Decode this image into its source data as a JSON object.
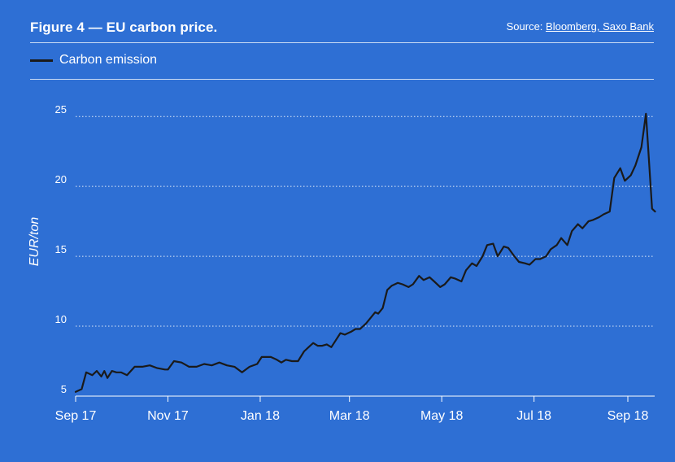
{
  "header": {
    "title": "Figure 4 — EU carbon price.",
    "source_prefix": "Source: ",
    "source_link": "Bloomberg, Saxo Bank"
  },
  "colors": {
    "background": "#2E6FD4",
    "line": "#1a1a1a",
    "text": "#ffffff",
    "grid": "#ffffff"
  },
  "chart_data": {
    "type": "line",
    "title": "Figure 4 — EU carbon price.",
    "ylabel": "EUR/ton",
    "xlabel": "",
    "ylim": [
      5,
      26
    ],
    "yticks": [
      5,
      10,
      15,
      20,
      25
    ],
    "xticks": [
      "Sep 17",
      "Nov 17",
      "Jan 18",
      "Mar 18",
      "May 18",
      "Jul 18",
      "Sep 18"
    ],
    "grid": "horizontal dotted",
    "legend_position": "top-left",
    "series": [
      {
        "name": "Carbon emission",
        "x": [
          "2017-09-01",
          "2017-09-05",
          "2017-09-08",
          "2017-09-12",
          "2017-09-15",
          "2017-09-18",
          "2017-09-20",
          "2017-09-22",
          "2017-09-25",
          "2017-09-28",
          "2017-10-01",
          "2017-10-05",
          "2017-10-10",
          "2017-10-15",
          "2017-10-20",
          "2017-10-25",
          "2017-10-30",
          "2017-11-01",
          "2017-11-05",
          "2017-11-10",
          "2017-11-15",
          "2017-11-20",
          "2017-11-25",
          "2017-11-30",
          "2017-12-05",
          "2017-12-10",
          "2017-12-15",
          "2017-12-20",
          "2017-12-25",
          "2017-12-30",
          "2018-01-02",
          "2018-01-05",
          "2018-01-08",
          "2018-01-12",
          "2018-01-15",
          "2018-01-18",
          "2018-01-22",
          "2018-01-26",
          "2018-01-30",
          "2018-02-02",
          "2018-02-05",
          "2018-02-08",
          "2018-02-11",
          "2018-02-14",
          "2018-02-17",
          "2018-02-20",
          "2018-02-23",
          "2018-02-26",
          "2018-02-28",
          "2018-03-02",
          "2018-03-05",
          "2018-03-08",
          "2018-03-12",
          "2018-03-15",
          "2018-03-18",
          "2018-03-20",
          "2018-03-23",
          "2018-03-26",
          "2018-03-29",
          "2018-04-02",
          "2018-04-05",
          "2018-04-09",
          "2018-04-12",
          "2018-04-16",
          "2018-04-19",
          "2018-04-23",
          "2018-04-26",
          "2018-04-30",
          "2018-05-03",
          "2018-05-07",
          "2018-05-10",
          "2018-05-14",
          "2018-05-17",
          "2018-05-21",
          "2018-05-24",
          "2018-05-28",
          "2018-05-31",
          "2018-06-04",
          "2018-06-07",
          "2018-06-11",
          "2018-06-14",
          "2018-06-18",
          "2018-06-21",
          "2018-06-25",
          "2018-06-28",
          "2018-07-02",
          "2018-07-05",
          "2018-07-09",
          "2018-07-12",
          "2018-07-16",
          "2018-07-19",
          "2018-07-23",
          "2018-07-26",
          "2018-07-30",
          "2018-08-02",
          "2018-08-06",
          "2018-08-09",
          "2018-08-13",
          "2018-08-16",
          "2018-08-20",
          "2018-08-23",
          "2018-08-27",
          "2018-08-30",
          "2018-09-03",
          "2018-09-06",
          "2018-09-10",
          "2018-09-13",
          "2018-09-17",
          "2018-09-19"
        ],
        "values": [
          5.3,
          5.5,
          6.7,
          6.5,
          6.8,
          6.4,
          6.8,
          6.3,
          6.8,
          6.7,
          6.7,
          6.5,
          7.1,
          7.1,
          7.2,
          7.0,
          6.9,
          6.9,
          7.5,
          7.4,
          7.1,
          7.1,
          7.3,
          7.2,
          7.4,
          7.2,
          7.1,
          6.7,
          7.1,
          7.3,
          7.8,
          7.8,
          7.8,
          7.6,
          7.4,
          7.6,
          7.5,
          7.5,
          8.2,
          8.5,
          8.8,
          8.6,
          8.6,
          8.7,
          8.5,
          9.0,
          9.5,
          9.4,
          9.5,
          9.6,
          9.8,
          9.8,
          10.2,
          10.6,
          11.0,
          10.9,
          11.3,
          12.6,
          12.9,
          13.1,
          13.0,
          12.8,
          13.0,
          13.6,
          13.3,
          13.5,
          13.2,
          12.8,
          13.0,
          13.5,
          13.4,
          13.2,
          14.0,
          14.5,
          14.3,
          15.0,
          15.8,
          15.9,
          15.0,
          15.7,
          15.6,
          15.0,
          14.6,
          14.5,
          14.4,
          14.8,
          14.8,
          15.0,
          15.5,
          15.8,
          16.3,
          15.8,
          16.8,
          17.3,
          17.0,
          17.5,
          17.6,
          17.8,
          18.0,
          18.2,
          20.6,
          21.3,
          20.4,
          20.8,
          21.5,
          22.8,
          25.2,
          18.4,
          18.2
        ],
        "color": "#1a1a1a"
      }
    ]
  }
}
